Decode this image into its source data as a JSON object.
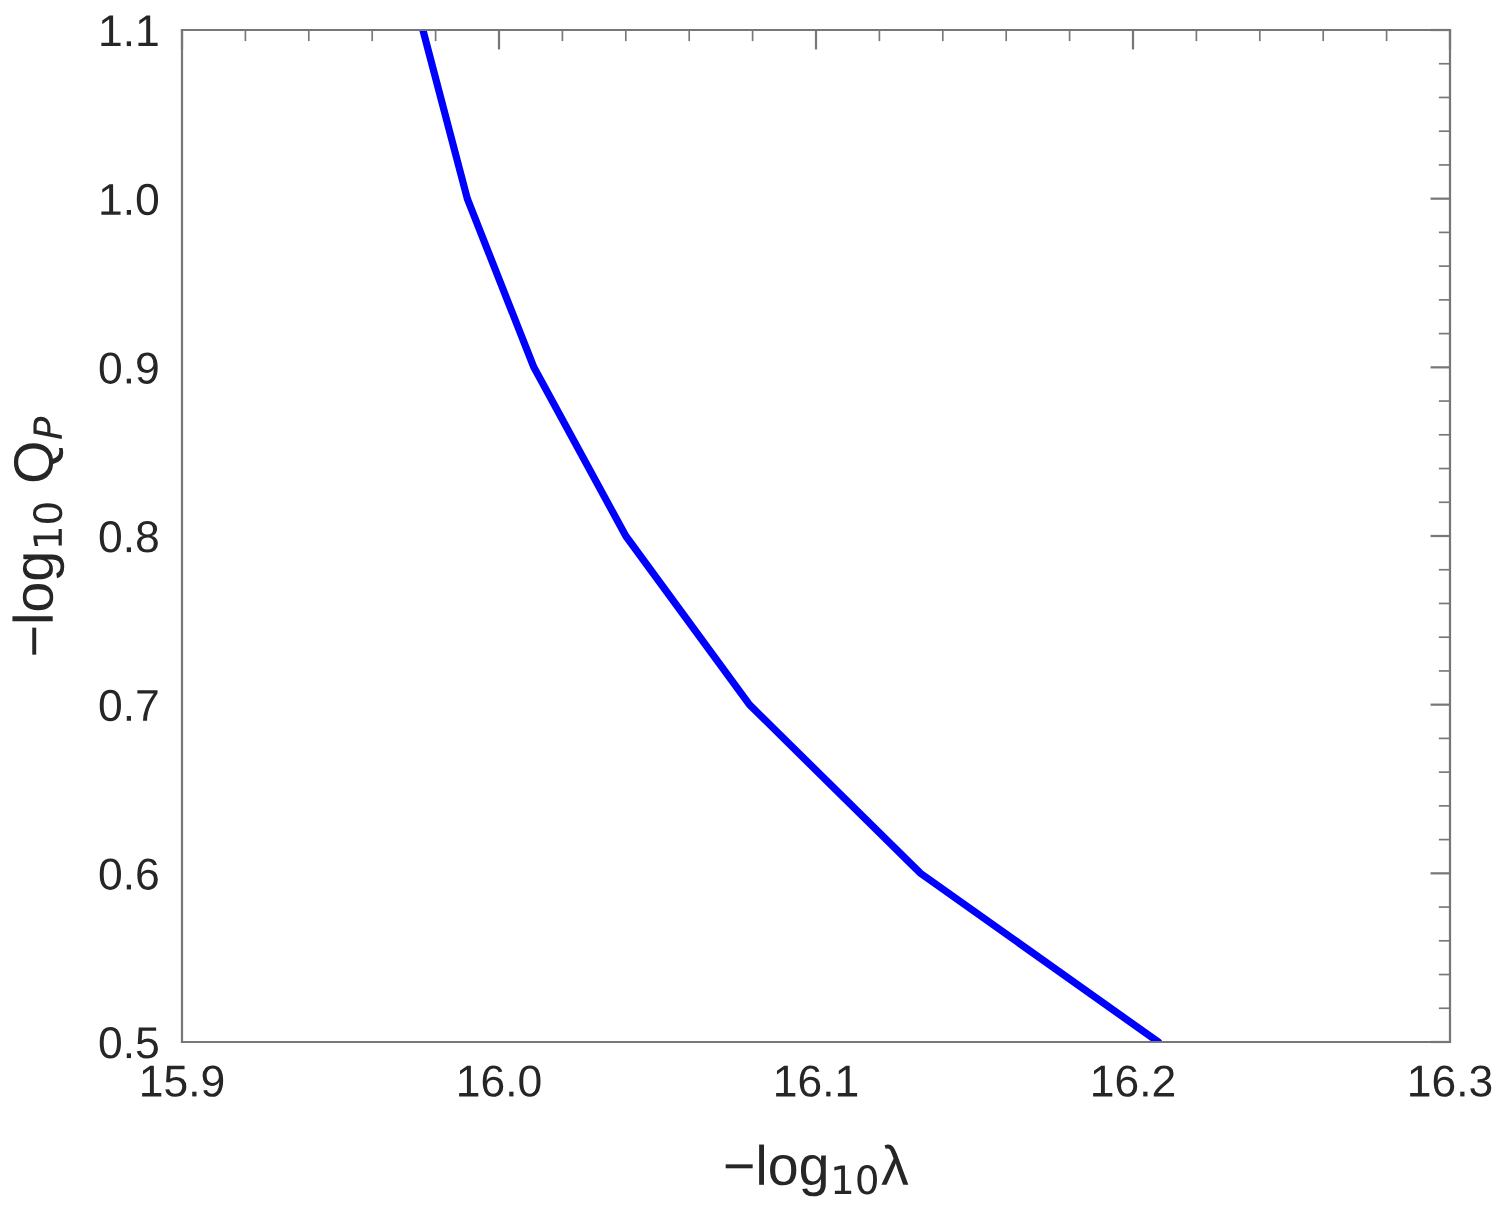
{
  "chart_data": {
    "type": "line",
    "xlabel": "−log$_{10}$λ",
    "ylabel": "−log$_{10}$ Q$_{P}$",
    "x": [
      15.976,
      15.99,
      16.011,
      16.04,
      16.079,
      16.133,
      16.208
    ],
    "series": [
      {
        "color": "#0000ff",
        "values": [
          1.1,
          1.0,
          0.9,
          0.8,
          0.7,
          0.6,
          0.5
        ]
      }
    ],
    "xlim": [
      15.9,
      16.3
    ],
    "ylim": [
      0.5,
      1.1
    ],
    "xticks": [
      {
        "value": 15.9,
        "label": "15.9"
      },
      {
        "value": 16.0,
        "label": "16.0"
      },
      {
        "value": 16.1,
        "label": "16.1"
      },
      {
        "value": 16.2,
        "label": "16.2"
      },
      {
        "value": 16.3,
        "label": "16.3"
      }
    ],
    "yticks": [
      {
        "value": 0.5,
        "label": "0.5"
      },
      {
        "value": 0.6,
        "label": "0.6"
      },
      {
        "value": 0.7,
        "label": "0.7"
      },
      {
        "value": 0.8,
        "label": "0.8"
      },
      {
        "value": 0.9,
        "label": "0.9"
      },
      {
        "value": 1.0,
        "label": "1.0"
      },
      {
        "value": 1.1,
        "label": "1.1"
      }
    ],
    "grid": false,
    "legend": false,
    "marker": "none",
    "line_style": "solid"
  }
}
